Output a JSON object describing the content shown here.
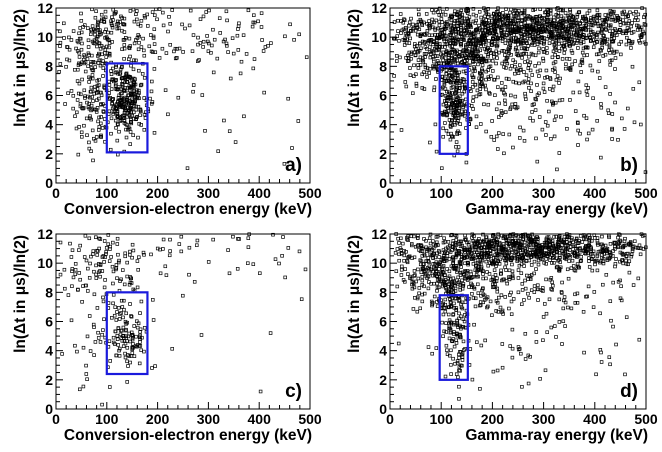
{
  "chart_data": [
    {
      "type": "scatter",
      "panel_label": "a)",
      "xlabel": "Conversion-electron energy (keV)",
      "ylabel": "ln(Δt in μs)/ln(2)",
      "xlim": [
        0,
        500
      ],
      "ylim": [
        0,
        12
      ],
      "xticks": [
        0,
        100,
        200,
        300,
        400,
        500
      ],
      "yticks": [
        0,
        2,
        4,
        6,
        8,
        10,
        12
      ],
      "marker_color": "#000000",
      "selection_box": {
        "x": [
          100,
          180
        ],
        "y": [
          2.1,
          8.2
        ],
        "color": "#1a1adc"
      },
      "density": [
        {
          "cx": 90,
          "cy": 9.5,
          "sx": 40,
          "sy": 2.0,
          "n": 240
        },
        {
          "cx": 140,
          "cy": 5.6,
          "sx": 18,
          "sy": 1.2,
          "n": 240
        },
        {
          "cx": 70,
          "cy": 5.5,
          "sx": 22,
          "sy": 1.6,
          "n": 90
        },
        {
          "cx": 250,
          "cy": 10.5,
          "sx": 130,
          "sy": 1.4,
          "n": 150
        },
        {
          "cx": 300,
          "cy": 5.0,
          "sx": 120,
          "sy": 3.0,
          "n": 35
        }
      ]
    },
    {
      "type": "scatter",
      "panel_label": "b)",
      "xlabel": "Gamma-ray energy (keV)",
      "ylabel": "ln(Δt in μs)/ln(2)",
      "xlim": [
        0,
        500
      ],
      "ylim": [
        0,
        12
      ],
      "xticks": [
        0,
        100,
        200,
        300,
        400,
        500
      ],
      "yticks": [
        0,
        2,
        4,
        6,
        8,
        10,
        12
      ],
      "marker_color": "#000000",
      "selection_box": {
        "x": [
          97,
          152
        ],
        "y": [
          2.0,
          8.0
        ],
        "color": "#1a1adc"
      },
      "density": [
        {
          "cx": 270,
          "cy": 10.6,
          "sx": 140,
          "sy": 0.9,
          "n": 1300
        },
        {
          "cx": 120,
          "cy": 8.8,
          "sx": 50,
          "sy": 1.0,
          "n": 300
        },
        {
          "cx": 125,
          "cy": 5.5,
          "sx": 14,
          "sy": 1.5,
          "n": 180
        },
        {
          "cx": 230,
          "cy": 7.6,
          "sx": 120,
          "sy": 1.2,
          "n": 260
        },
        {
          "cx": 280,
          "cy": 4.2,
          "sx": 130,
          "sy": 1.4,
          "n": 120
        }
      ]
    },
    {
      "type": "scatter",
      "panel_label": "c)",
      "xlabel": "Conversion-electron energy (keV)",
      "ylabel": "ln(Δt in μs)/ln(2)",
      "xlim": [
        0,
        500
      ],
      "ylim": [
        0,
        12
      ],
      "xticks": [
        0,
        100,
        200,
        300,
        400,
        500
      ],
      "yticks": [
        0,
        2,
        4,
        6,
        8,
        10,
        12
      ],
      "marker_color": "#000000",
      "selection_box": {
        "x": [
          100,
          180
        ],
        "y": [
          2.4,
          8.0
        ],
        "color": "#1a1adc"
      },
      "density": [
        {
          "cx": 140,
          "cy": 5.0,
          "sx": 20,
          "sy": 1.4,
          "n": 110
        },
        {
          "cx": 90,
          "cy": 10.0,
          "sx": 45,
          "sy": 1.4,
          "n": 110
        },
        {
          "cx": 280,
          "cy": 10.8,
          "sx": 130,
          "sy": 1.0,
          "n": 55
        },
        {
          "cx": 70,
          "cy": 6.0,
          "sx": 30,
          "sy": 2.0,
          "n": 35
        },
        {
          "cx": 300,
          "cy": 4.0,
          "sx": 140,
          "sy": 3.0,
          "n": 12
        }
      ]
    },
    {
      "type": "scatter",
      "panel_label": "d)",
      "xlabel": "Gamma-ray energy (keV)",
      "ylabel": "ln(Δt in μs)/ln(2)",
      "xlim": [
        0,
        500
      ],
      "ylim": [
        0,
        12
      ],
      "xticks": [
        0,
        100,
        200,
        300,
        400,
        500
      ],
      "yticks": [
        0,
        2,
        4,
        6,
        8,
        10,
        12
      ],
      "marker_color": "#000000",
      "selection_box": {
        "x": [
          97,
          152
        ],
        "y": [
          2.0,
          7.8
        ],
        "color": "#1a1adc"
      },
      "density": [
        {
          "cx": 270,
          "cy": 11.0,
          "sx": 140,
          "sy": 0.7,
          "n": 1000
        },
        {
          "cx": 110,
          "cy": 9.3,
          "sx": 50,
          "sy": 1.0,
          "n": 250
        },
        {
          "cx": 125,
          "cy": 5.2,
          "sx": 14,
          "sy": 1.5,
          "n": 120
        },
        {
          "cx": 220,
          "cy": 8.2,
          "sx": 110,
          "sy": 1.1,
          "n": 220
        },
        {
          "cx": 280,
          "cy": 4.2,
          "sx": 130,
          "sy": 1.4,
          "n": 60
        }
      ]
    }
  ]
}
